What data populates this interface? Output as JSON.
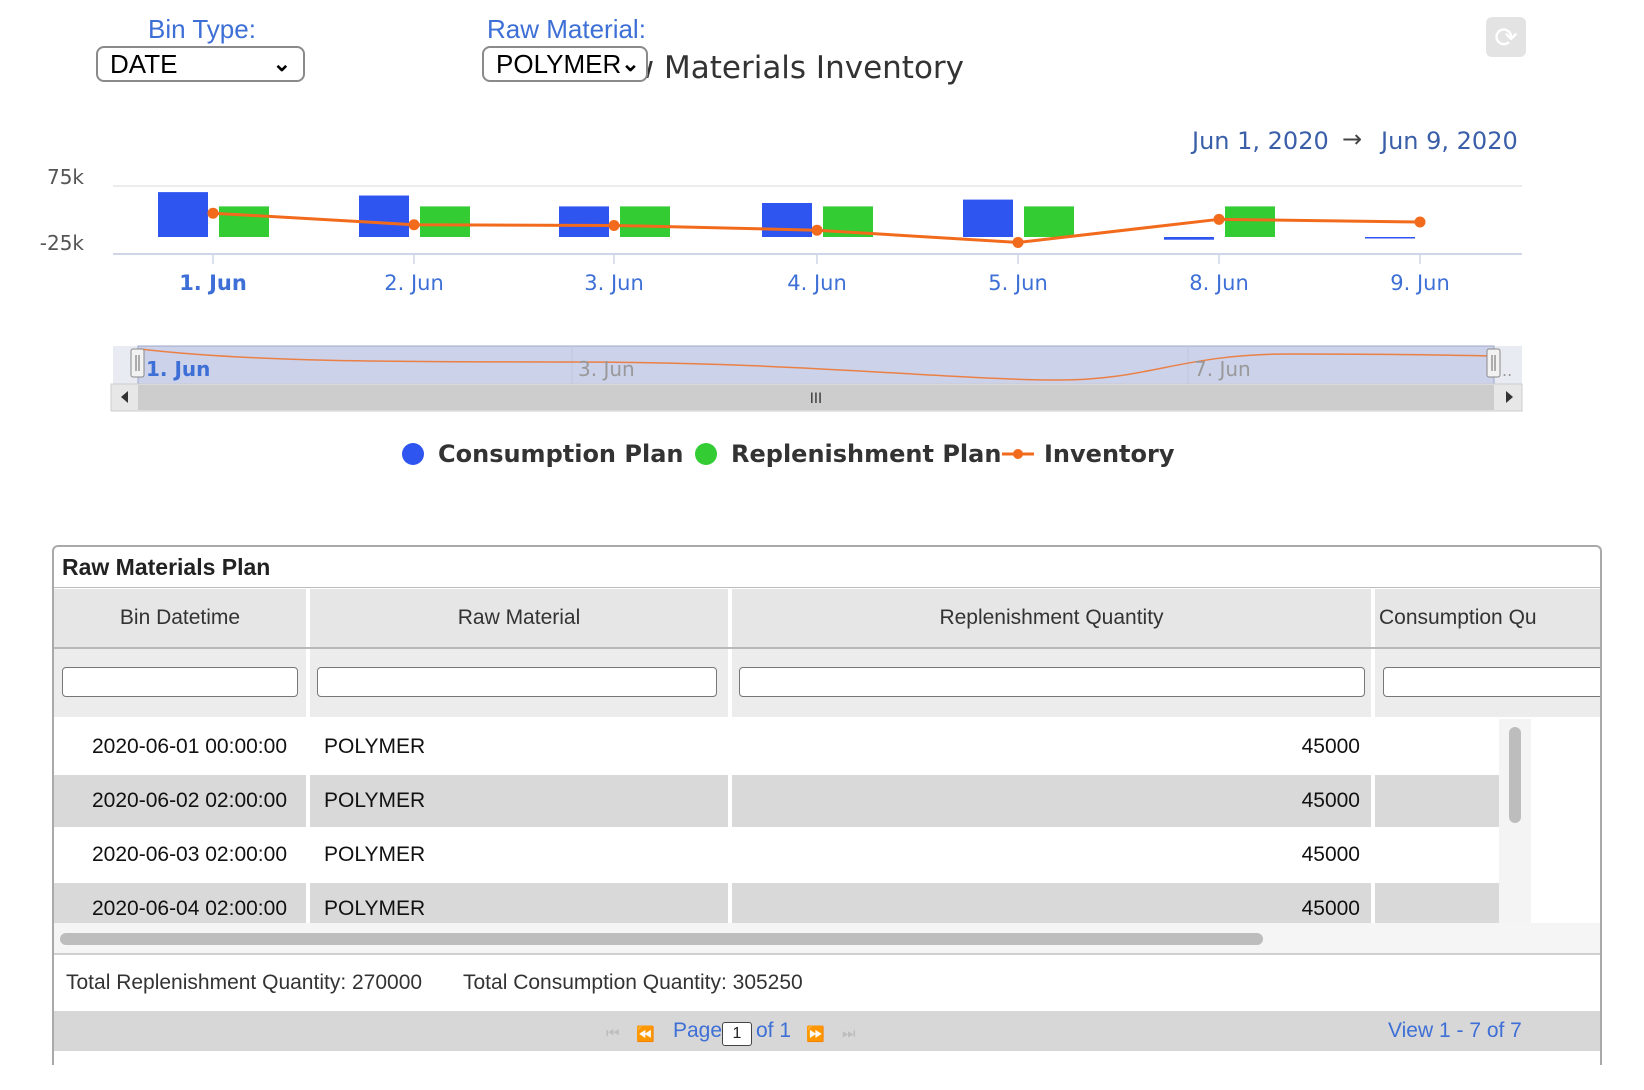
{
  "controls": {
    "bin_type_label": "Bin Type:",
    "bin_type_value": "DATE",
    "raw_material_label": "Raw Material:",
    "raw_material_value": "POLYMER"
  },
  "chart_title": "Raw Materials Inventory",
  "range": {
    "from": "Jun 1, 2020",
    "arrow": "→",
    "to": "Jun 9, 2020"
  },
  "navigator": {
    "labels": [
      "1. Jun",
      "3. Jun",
      "7. Jun"
    ],
    "ellipsis": "..",
    "scroll_grip": "III"
  },
  "legend": {
    "consumption": "Consumption Plan",
    "replenishment": "Replenishment Plan",
    "inventory": "Inventory"
  },
  "colors": {
    "consumption": "#2f55f0",
    "replenishment": "#33cc33",
    "inventory": "#f26b1d",
    "accent": "#3d6fd6"
  },
  "chart_data": {
    "type": "bar",
    "categories": [
      "1. Jun",
      "2. Jun",
      "3. Jun",
      "4. Jun",
      "5. Jun",
      "8. Jun",
      "9. Jun"
    ],
    "yaxis_ticks": [
      "75k",
      "-25k"
    ],
    "series": [
      {
        "name": "Consumption Plan",
        "type": "bar",
        "values": [
          66000,
          61000,
          45000,
          50000,
          55000,
          -4000,
          -1000
        ]
      },
      {
        "name": "Replenishment Plan",
        "type": "bar",
        "values": [
          45000,
          45000,
          45000,
          45000,
          45000,
          45000,
          0
        ]
      },
      {
        "name": "Inventory",
        "type": "line",
        "values": [
          35000,
          18000,
          17000,
          10000,
          -8000,
          26000,
          22000
        ]
      }
    ],
    "ylim": [
      -25000,
      75000
    ],
    "grid": true,
    "legend_position": "bottom"
  },
  "icons": {
    "refresh": "refresh-icon",
    "nav_left": "arrow-left-icon",
    "nav_right": "arrow-right-icon"
  },
  "grid": {
    "caption": "Raw Materials Plan",
    "columns": [
      "Bin Datetime",
      "Raw Material",
      "Replenishment Quantity",
      "Consumption Qu"
    ],
    "rows": [
      [
        "2020-06-01 00:00:00",
        "POLYMER",
        "45000"
      ],
      [
        "2020-06-02 02:00:00",
        "POLYMER",
        "45000"
      ],
      [
        "2020-06-03 02:00:00",
        "POLYMER",
        "45000"
      ],
      [
        "2020-06-04 02:00:00",
        "POLYMER",
        "45000"
      ]
    ],
    "footer": {
      "total_replenishment": "Total Replenishment Quantity: 270000",
      "total_consumption": "Total Consumption Quantity: 305250"
    },
    "pager": {
      "page_label": "Page",
      "page_value": "1",
      "of_label": "of 1",
      "view_label": "View 1 - 7 of 7"
    }
  }
}
